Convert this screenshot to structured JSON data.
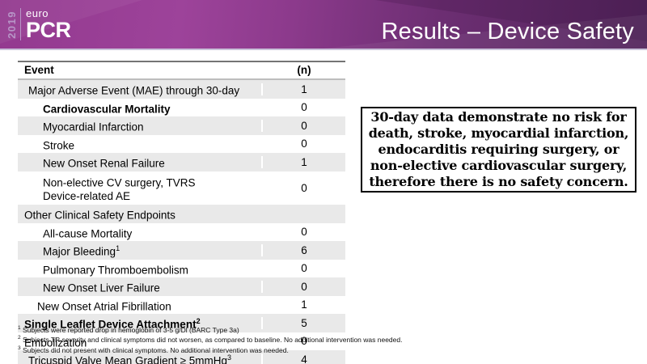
{
  "header": {
    "logo": {
      "year": "2019",
      "brand_top": "euro",
      "brand_bottom": "PCR"
    },
    "title": "Results – Device Safety"
  },
  "table": {
    "headers": {
      "event": "Event",
      "n": "(n)"
    },
    "rows": [
      {
        "label": "Major Adverse Event (MAE) through 30-day",
        "sup": "",
        "n": "1",
        "indent": 1,
        "bold": false,
        "shaded": true
      },
      {
        "label": "Cardiovascular Mortality",
        "sup": "",
        "n": "0",
        "indent": 3,
        "bold": true,
        "shaded": false
      },
      {
        "label": "Myocardial Infarction",
        "sup": "",
        "n": "0",
        "indent": 3,
        "bold": false,
        "shaded": true
      },
      {
        "label": "Stroke",
        "sup": "",
        "n": "0",
        "indent": 3,
        "bold": false,
        "shaded": false
      },
      {
        "label": "New Onset Renal Failure",
        "sup": "",
        "n": "1",
        "indent": 3,
        "bold": false,
        "shaded": true
      },
      {
        "label": "Non-elective CV surgery, TVRS",
        "label2": "Device-related AE",
        "sup": "",
        "n": "0",
        "indent": 3,
        "bold": false,
        "shaded": false
      },
      {
        "label": "Other Clinical Safety Endpoints",
        "sup": "",
        "n": "",
        "indent": 0,
        "bold": false,
        "shaded": true
      },
      {
        "label": "All-cause Mortality",
        "sup": "",
        "n": "0",
        "indent": 3,
        "bold": false,
        "shaded": false
      },
      {
        "label": "Major Bleeding",
        "sup": "1",
        "n": "6",
        "indent": 3,
        "bold": false,
        "shaded": true
      },
      {
        "label": "Pulmonary Thromboembolism",
        "sup": "",
        "n": "0",
        "indent": 3,
        "bold": false,
        "shaded": false
      },
      {
        "label": "New Onset Liver Failure",
        "sup": "",
        "n": "0",
        "indent": 3,
        "bold": false,
        "shaded": true
      },
      {
        "label": "New Onset Atrial Fibrillation",
        "sup": "",
        "n": "1",
        "indent": 2,
        "bold": false,
        "shaded": false
      },
      {
        "label": "Single Leaflet Device Attachment",
        "sup": "2",
        "n": "5",
        "indent": 0,
        "bold": true,
        "shaded": true
      },
      {
        "label": "Embolization",
        "sup": "",
        "n": "0",
        "indent": 0,
        "bold": false,
        "shaded": false
      },
      {
        "label": "Tricuspid Valve Mean Gradient ≥ 5mmHg",
        "sup": "3",
        "n": "4",
        "indent": 1,
        "bold": false,
        "shaded": true
      }
    ],
    "footnotes": [
      {
        "sup": "1",
        "text": "Subjects were reported  drop in hemoglobin of 3-5 g/Dl (BARC Type 3a)"
      },
      {
        "sup": "2",
        "text": "Subjects TR severity and clinical symptoms did not worsen, as compared to baseline.  No additional intervention was needed."
      },
      {
        "sup": "3",
        "text": "Subjects did not present with clinical symptoms. No additional intervention was needed."
      }
    ]
  },
  "callout": {
    "text": "30-day data demonstrate no risk for death, stroke, myocardial infarction, endocarditis requiring surgery, or non-elective cardiovascular surgery, therefore there is no safety concern."
  },
  "colors": {
    "banner_left": "#93398f",
    "banner_mid": "#8c3a8c",
    "banner_right": "#53255c",
    "banner_bottom_line": "#c9c2d9",
    "logo_accent": "#b795c7",
    "shaded_row": "#e9e9e9",
    "table_border_dark": "#757575",
    "table_border_light": "#bdbdbd",
    "callout_border": "#000000",
    "text_white": "#ffffff",
    "text_black": "#000000"
  }
}
